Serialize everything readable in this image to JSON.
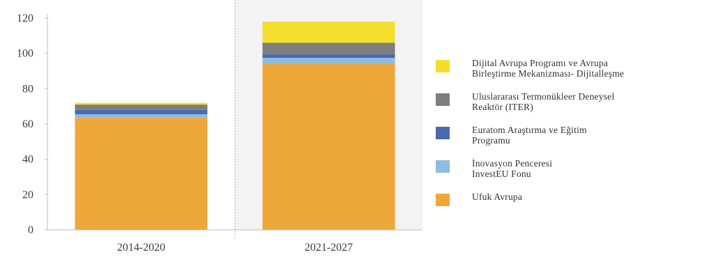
{
  "chart_data": {
    "type": "bar",
    "stacked": true,
    "categories": [
      "2014-2020",
      "2021-2027"
    ],
    "series": [
      {
        "name": "Ufuk Avrupa",
        "color": "#EEA83A",
        "values": [
          63.5,
          94
        ]
      },
      {
        "name": "İnovasyon Penceresi\nInvestEU Fonu",
        "color": "#8CBCE0",
        "values": [
          2,
          3.5
        ]
      },
      {
        "name": "Euratom Araştırma ve Eğitim\nProgramu",
        "color": "#4A6AAE",
        "values": [
          2.5,
          2
        ]
      },
      {
        "name": "Uluslararası Termonükleer Deneysel\nReaktör (ITER)",
        "color": "#7E7E7E",
        "values": [
          3,
          6.5
        ]
      },
      {
        "name": "Dijital Avrupa Programı ve Avrupa\nBirleştirme Mekanizması- Dijitalleşme",
        "color": "#F3DE2E",
        "values": [
          1,
          12
        ]
      }
    ],
    "ylim": [
      0,
      120
    ],
    "yticks": [
      0,
      20,
      40,
      60,
      80,
      100,
      120
    ],
    "xlabel": "",
    "ylabel": "",
    "title": "",
    "grid": false,
    "highlight_category": "2021-2027",
    "highlight_color": "#F3F3F3",
    "legend_position": "right",
    "legend_order": [
      4,
      3,
      2,
      1,
      0
    ]
  }
}
